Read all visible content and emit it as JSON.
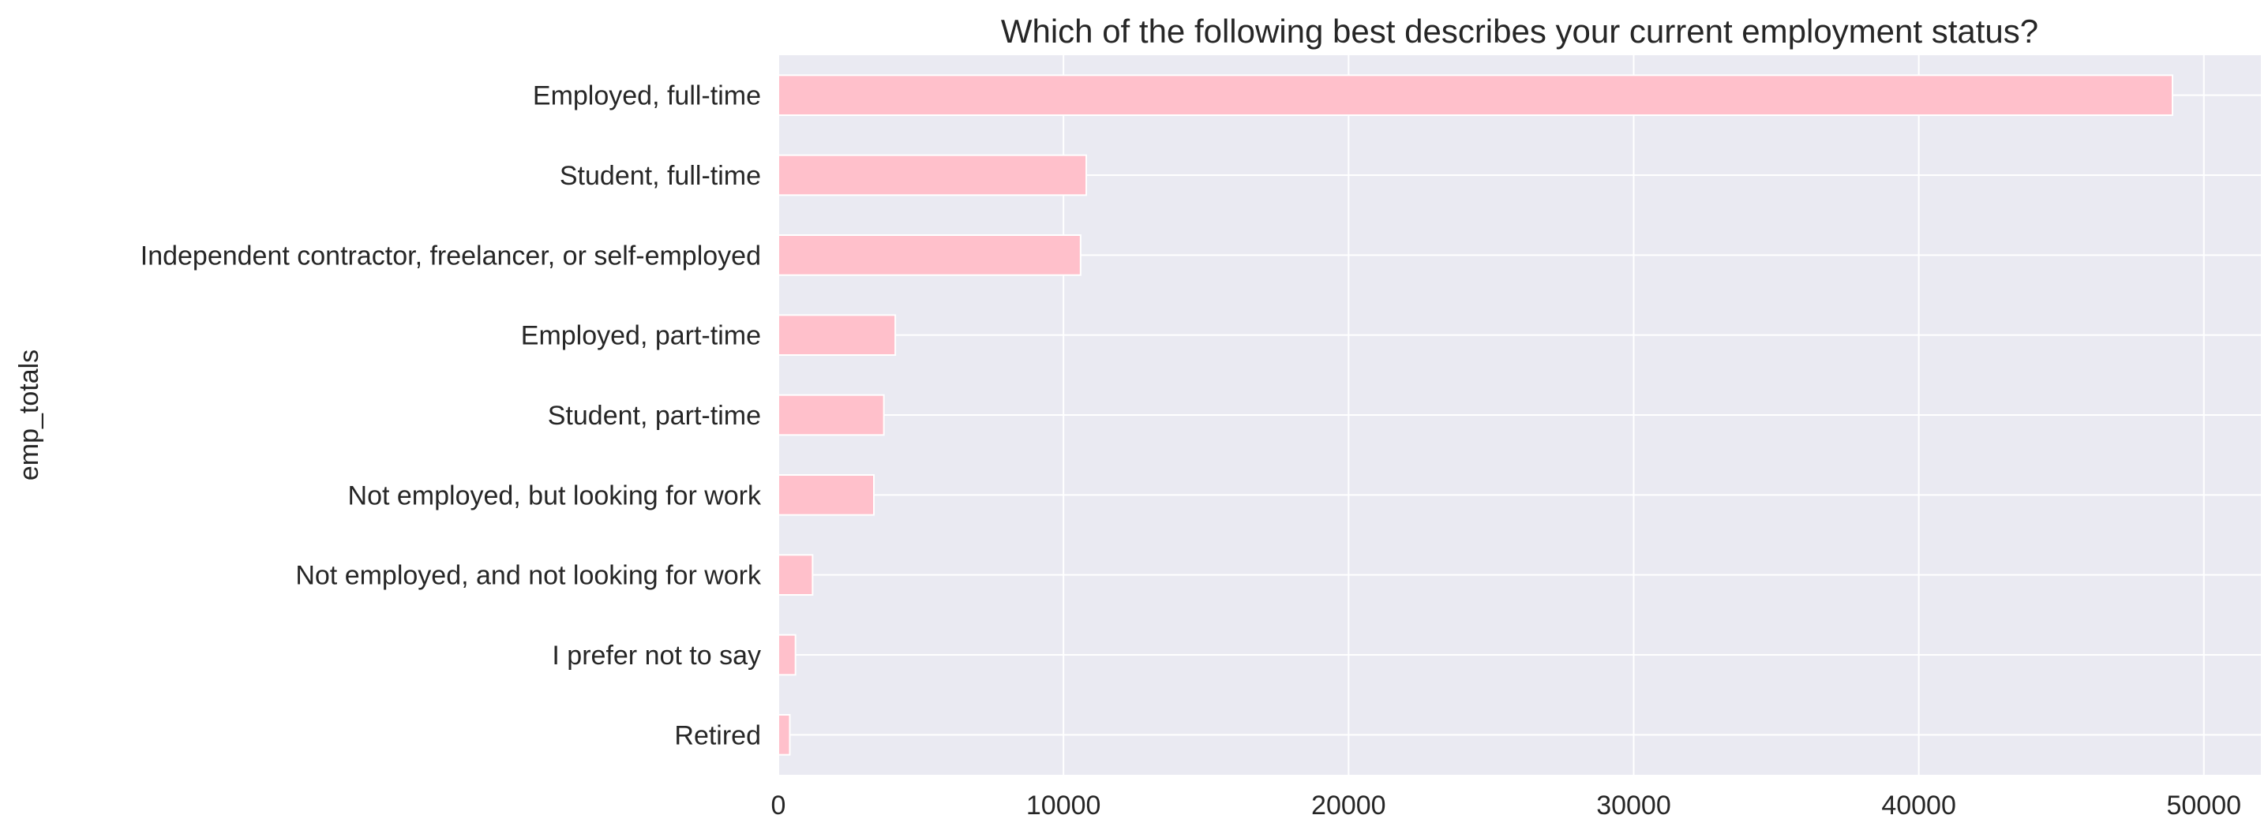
{
  "chart_data": {
    "type": "bar",
    "orientation": "horizontal",
    "title": "Which of the following best describes your current employment status?",
    "xlabel": "",
    "ylabel": "emp_totals",
    "categories": [
      "Employed, full-time",
      "Student, full-time",
      "Independent contractor, freelancer, or self-employed",
      "Employed, part-time",
      "Student, part-time",
      "Not employed, but looking for work",
      "Not employed, and not looking for work",
      "I prefer not to say",
      "Retired"
    ],
    "values": [
      48900,
      10800,
      10600,
      4100,
      3700,
      3350,
      1200,
      600,
      400
    ],
    "xlim": [
      0,
      52000
    ],
    "xticks": [
      0,
      10000,
      20000,
      30000,
      40000,
      50000
    ],
    "grid": true,
    "legend": "none",
    "colors": {
      "bar": "#ffc0cb",
      "plot_background": "#eaeaf2",
      "grid": "#ffffff",
      "text": "#262626"
    }
  }
}
